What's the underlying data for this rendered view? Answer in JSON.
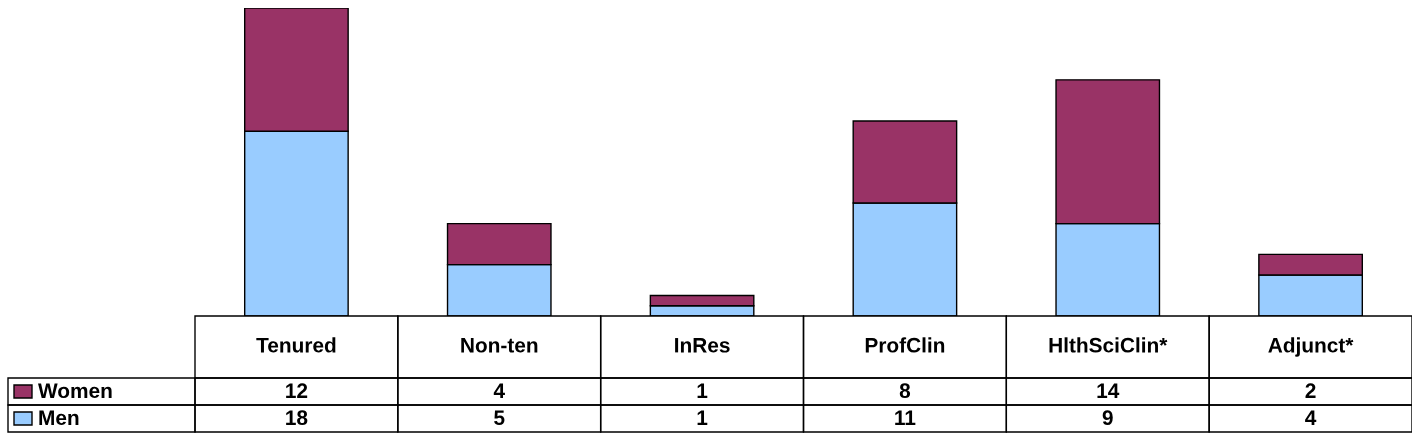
{
  "chart_data": {
    "type": "bar",
    "stacked": true,
    "data_labels": true,
    "legend": "left",
    "categories": [
      "Tenured",
      "Non-ten",
      "InRes",
      "ProfClin",
      "HlthSciClin*",
      "Adjunct*"
    ],
    "series": [
      {
        "name": "Men",
        "color": "#99ccff",
        "values": [
          18,
          5,
          1,
          11,
          9,
          4
        ]
      },
      {
        "name": "Women",
        "color": "#993366",
        "values": [
          12,
          4,
          1,
          8,
          14,
          2
        ]
      }
    ]
  }
}
